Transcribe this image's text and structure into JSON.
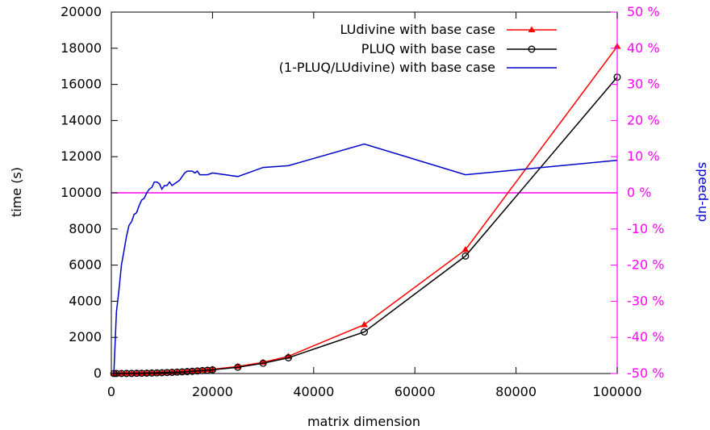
{
  "chart_data": {
    "type": "line",
    "xlabel": "matrix dimension",
    "ylabel": "time (s)",
    "y2label": "speed-up",
    "xlim": [
      0,
      100000
    ],
    "ylim": [
      0,
      20000
    ],
    "y2lim": [
      -50,
      50
    ],
    "x_ticks": [
      "0",
      "20000",
      "40000",
      "60000",
      "80000",
      "100000"
    ],
    "y_ticks": [
      "0",
      "2000",
      "4000",
      "6000",
      "8000",
      "10000",
      "12000",
      "14000",
      "16000",
      "18000",
      "20000"
    ],
    "y2_ticks": [
      "-50 %",
      "-40 %",
      "-30 %",
      "-20 %",
      "-10 %",
      "0 %",
      "10 %",
      "20 %",
      "30 %",
      "40 %",
      "50 %"
    ],
    "grid": false,
    "legend_position": "top-right",
    "colors": {
      "ludivine": "#ff0000",
      "pluq": "#000000",
      "speedup": "#0000cc",
      "zero_line": "#ff00ff",
      "y2_axis": "#ff00ff",
      "y2_label": "#0000cc"
    },
    "series": [
      {
        "key": "ludivine",
        "name": "LUdivine with base case",
        "axis": "left",
        "marker": "triangle",
        "color": "#ff0000",
        "x": [
          500,
          1000,
          2000,
          3000,
          4000,
          5000,
          6000,
          7000,
          8000,
          9000,
          10000,
          11000,
          12000,
          13000,
          14000,
          15000,
          16000,
          17000,
          18000,
          19000,
          20000,
          25000,
          30000,
          35000,
          50000,
          70000,
          100000
        ],
        "y": [
          1,
          2,
          4,
          6,
          9,
          13,
          18,
          24,
          31,
          39,
          49,
          60,
          72,
          86,
          101,
          118,
          137,
          158,
          180,
          205,
          230,
          390,
          620,
          950,
          2700,
          6850,
          18100
        ]
      },
      {
        "key": "pluq",
        "name": "PLUQ with base case",
        "axis": "left",
        "marker": "circle",
        "color": "#000000",
        "x": [
          500,
          1000,
          2000,
          3000,
          4000,
          5000,
          6000,
          7000,
          8000,
          9000,
          10000,
          11000,
          12000,
          13000,
          14000,
          15000,
          16000,
          17000,
          18000,
          19000,
          20000,
          25000,
          30000,
          35000,
          50000,
          70000,
          100000
        ],
        "y": [
          1,
          2,
          4,
          6,
          8,
          12,
          16,
          21,
          28,
          35,
          44,
          54,
          65,
          77,
          91,
          106,
          123,
          142,
          162,
          183,
          205,
          350,
          570,
          870,
          2300,
          6500,
          16400
        ]
      },
      {
        "key": "speedup",
        "name": "(1-PLUQ/LUdivine) with base case",
        "axis": "right",
        "marker": "none",
        "color": "#0000cc",
        "x": [
          500,
          1000,
          1500,
          2000,
          2500,
          3000,
          3500,
          4000,
          4500,
          5000,
          5500,
          6000,
          6500,
          7000,
          7500,
          8000,
          8500,
          9000,
          9500,
          10000,
          10500,
          11000,
          11500,
          12000,
          12500,
          13000,
          13500,
          14000,
          14500,
          15000,
          15500,
          16000,
          16500,
          17000,
          17500,
          18000,
          18500,
          19000,
          20000,
          25000,
          30000,
          35000,
          50000,
          70000,
          100000
        ],
        "y": [
          -50,
          -33,
          -27,
          -20,
          -16,
          -12,
          -9,
          -8,
          -6,
          -5.5,
          -3.5,
          -2,
          -1.5,
          0,
          1,
          1.5,
          3,
          3,
          2.5,
          1,
          2,
          2,
          3,
          2,
          2.5,
          3,
          3.5,
          4.5,
          5.5,
          6,
          6,
          6,
          5.5,
          6,
          5,
          5,
          5,
          5,
          5.5,
          4.5,
          7,
          7.5,
          13.5,
          5,
          9
        ]
      }
    ]
  }
}
